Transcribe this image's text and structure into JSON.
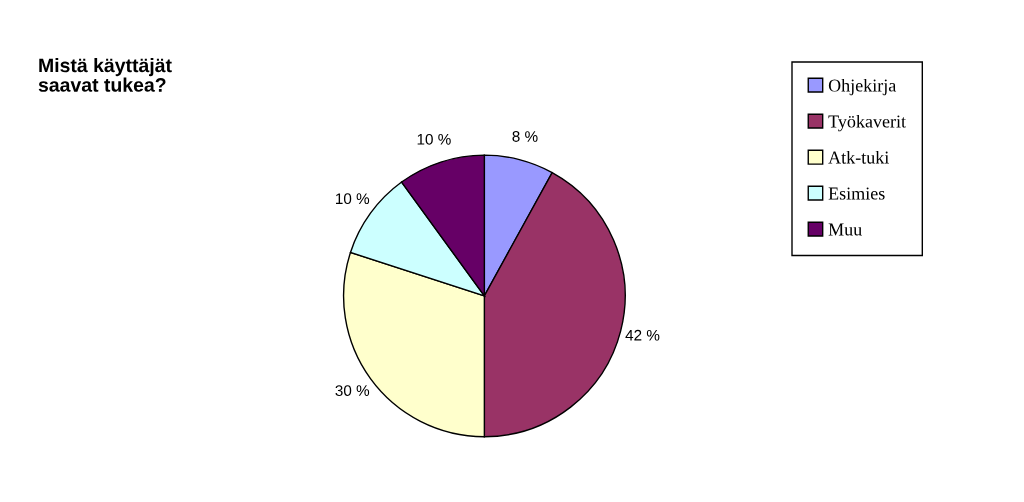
{
  "chart_data": {
    "type": "pie",
    "title": "Mistä käyttäjät\nsaavat tukea?",
    "categories": [
      "Ohjekirja",
      "Työkaverit",
      "Atk-tuki",
      "Esimies",
      "Muu"
    ],
    "values": [
      8,
      42,
      30,
      10,
      10
    ],
    "value_labels": [
      "8 %",
      "42 %",
      "30 %",
      "10 %",
      "10 %"
    ],
    "colors": [
      "#9999ff",
      "#993366",
      "#ffffcc",
      "#ccffff",
      "#660066"
    ],
    "legend": "right"
  }
}
